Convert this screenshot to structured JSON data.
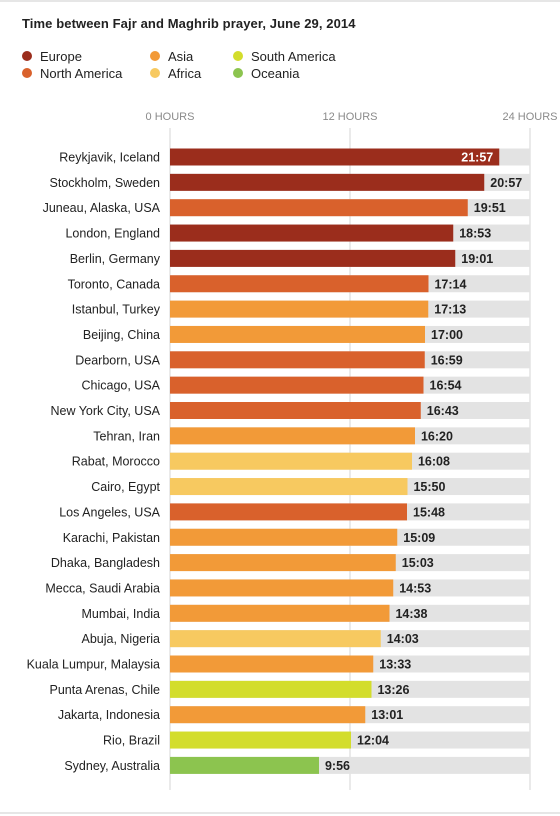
{
  "chart_data": {
    "type": "bar",
    "orientation": "horizontal",
    "title": "Time between Fajr and Maghrib prayer, June 29, 2014",
    "xlabel": "",
    "ylabel": "",
    "xlim": [
      0,
      24
    ],
    "x_ticks": [
      "0 HOURS",
      "12 HOURS",
      "24 HOURS"
    ],
    "grid": true,
    "legend_position": "top-left",
    "legend": [
      {
        "name": "Europe",
        "color": "#9b2d1c"
      },
      {
        "name": "North America",
        "color": "#d9612c"
      },
      {
        "name": "Asia",
        "color": "#f29a38"
      },
      {
        "name": "Africa",
        "color": "#f7c960"
      },
      {
        "name": "South America",
        "color": "#d3dd2c"
      },
      {
        "name": "Oceania",
        "color": "#8cc44f"
      }
    ],
    "categories": [
      "Reykjavik, Iceland",
      "Stockholm, Sweden",
      "Juneau, Alaska, USA",
      "London, England",
      "Berlin, Germany",
      "Toronto, Canada",
      "Istanbul, Turkey",
      "Beijing, China",
      "Dearborn, USA",
      "Chicago, USA",
      "New York City, USA",
      "Tehran, Iran",
      "Rabat, Morocco",
      "Cairo, Egypt",
      "Los Angeles, USA",
      "Karachi, Pakistan",
      "Dhaka, Bangladesh",
      "Mecca, Saudi Arabia",
      "Mumbai, India",
      "Abuja, Nigeria",
      "Kuala Lumpur, Malaysia",
      "Punta Arenas, Chile",
      "Jakarta, Indonesia",
      "Rio, Brazil",
      "Sydney, Australia"
    ],
    "labels": [
      "21:57",
      "20:57",
      "19:51",
      "18:53",
      "19:01",
      "17:14",
      "17:13",
      "17:00",
      "16:59",
      "16:54",
      "16:43",
      "16:20",
      "16:08",
      "15:50",
      "15:48",
      "15:09",
      "15:03",
      "14:53",
      "14:38",
      "14:03",
      "13:33",
      "13:26",
      "13:01",
      "12:04",
      "9:56"
    ],
    "values": [
      21.95,
      20.95,
      19.85,
      18.883,
      19.017,
      17.233,
      17.217,
      17.0,
      16.983,
      16.9,
      16.717,
      16.333,
      16.133,
      15.833,
      15.8,
      15.15,
      15.05,
      14.883,
      14.633,
      14.05,
      13.55,
      13.433,
      13.017,
      12.067,
      9.933
    ],
    "regions": [
      "Europe",
      "Europe",
      "North America",
      "Europe",
      "Europe",
      "North America",
      "Asia",
      "Asia",
      "North America",
      "North America",
      "North America",
      "Asia",
      "Africa",
      "Africa",
      "North America",
      "Asia",
      "Asia",
      "Asia",
      "Asia",
      "Africa",
      "Asia",
      "South America",
      "Asia",
      "South America",
      "Oceania"
    ],
    "track_color": "#e3e3e3",
    "value_label_color_first": "#ffffff",
    "value_label_color": "#222222"
  }
}
